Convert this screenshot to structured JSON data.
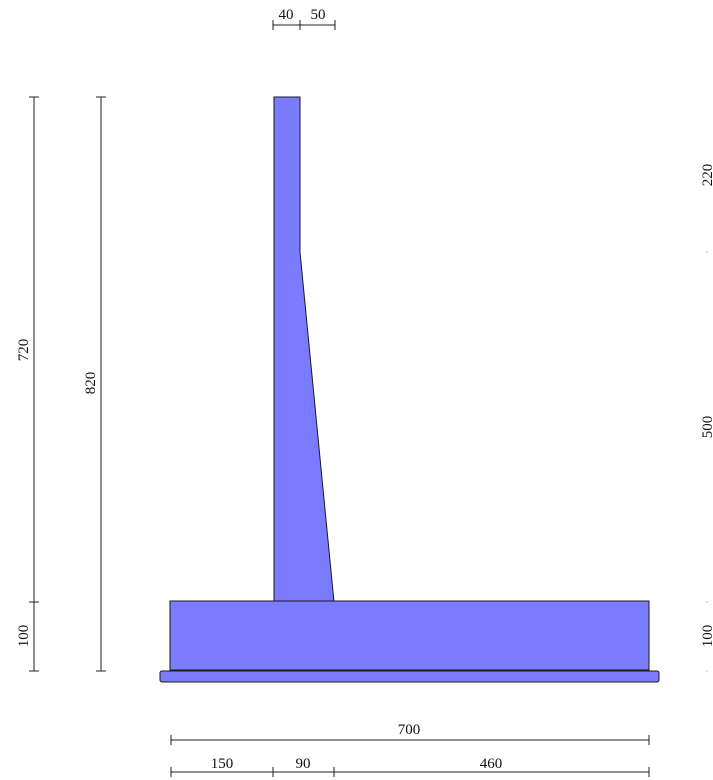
{
  "colors": {
    "fill": "#7b7bff",
    "line": "#222222",
    "text": "#111111"
  },
  "dimensions": {
    "top_left": "40",
    "top_right": "50",
    "left_outer_upper": "720",
    "left_outer_lower": "100",
    "left_inner": "820",
    "right_upper": "220",
    "right_middle": "500",
    "right_lower": "100",
    "bottom_total": "700",
    "bottom_left": "150",
    "bottom_mid": "90",
    "bottom_right": "460"
  }
}
